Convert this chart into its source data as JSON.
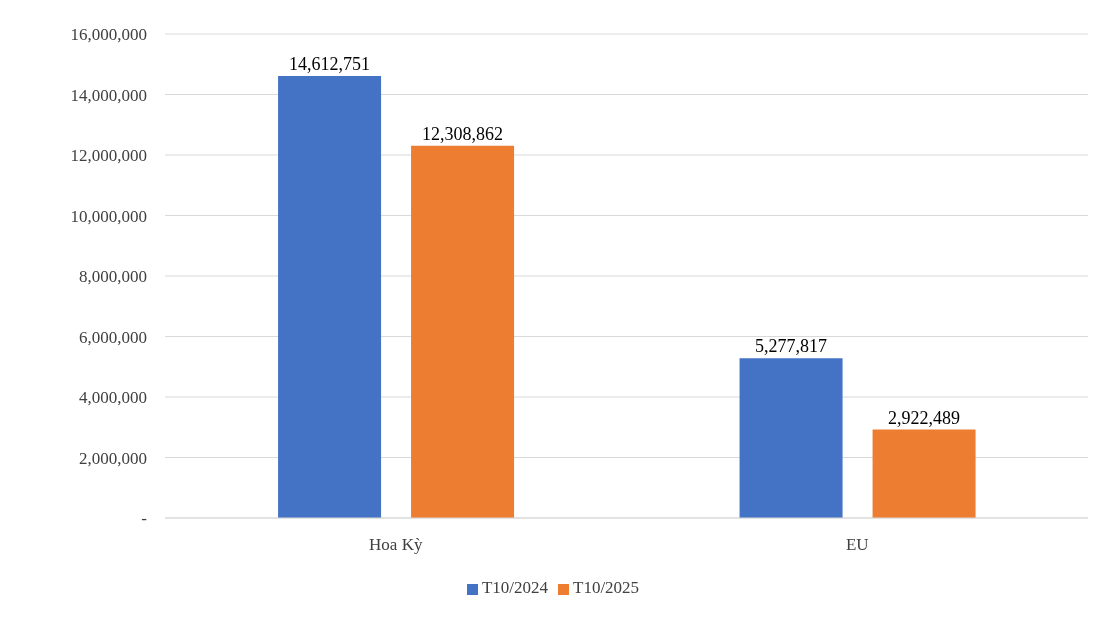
{
  "chart_data": {
    "type": "bar",
    "categories": [
      "Hoa Kỳ",
      "EU"
    ],
    "series": [
      {
        "name": "T10/2024",
        "color": "#4472c4",
        "values": [
          14612751,
          5277817
        ],
        "value_labels": [
          "14,612,751",
          "5,277,817"
        ]
      },
      {
        "name": "T10/2025",
        "color": "#ed7d31",
        "values": [
          12308862,
          2922489
        ],
        "value_labels": [
          "12,308,862",
          "2,922,489"
        ]
      }
    ],
    "ylim": [
      0,
      16000000
    ],
    "yticks": [
      {
        "value": 0,
        "label": "-"
      },
      {
        "value": 2000000,
        "label": "2,000,000"
      },
      {
        "value": 4000000,
        "label": "4,000,000"
      },
      {
        "value": 6000000,
        "label": "6,000,000"
      },
      {
        "value": 8000000,
        "label": "8,000,000"
      },
      {
        "value": 10000000,
        "label": "10,000,000"
      },
      {
        "value": 12000000,
        "label": "12,000,000"
      },
      {
        "value": 14000000,
        "label": "14,000,000"
      },
      {
        "value": 16000000,
        "label": "16,000,000"
      }
    ],
    "grid": "y",
    "legend": "bottom"
  }
}
